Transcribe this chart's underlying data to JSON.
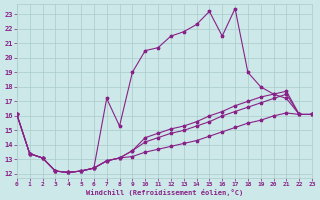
{
  "background_color": "#cce8e8",
  "grid_color": "#aacccc",
  "line_color": "#882288",
  "xlabel": "Windchill (Refroidissement éolien,°C)",
  "ylabel_ticks": [
    12,
    13,
    14,
    15,
    16,
    17,
    18,
    19,
    20,
    21,
    22,
    23
  ],
  "xlabel_ticks": [
    0,
    1,
    2,
    3,
    4,
    5,
    6,
    7,
    8,
    9,
    10,
    11,
    12,
    13,
    14,
    15,
    16,
    17,
    18,
    19,
    20,
    21,
    22,
    23
  ],
  "xlim": [
    0,
    23
  ],
  "ylim": [
    11.7,
    23.7
  ],
  "series": [
    {
      "x": [
        0,
        1,
        2,
        3,
        4,
        5,
        6,
        7,
        8,
        9,
        10,
        11,
        12,
        13,
        14,
        15,
        16,
        17,
        18,
        19,
        20,
        21,
        22,
        23
      ],
      "y": [
        16.1,
        13.4,
        13.1,
        12.2,
        12.1,
        12.2,
        12.4,
        12.9,
        13.1,
        13.2,
        13.5,
        13.7,
        13.9,
        14.1,
        14.3,
        14.6,
        14.9,
        15.2,
        15.5,
        15.7,
        16.0,
        16.2,
        16.1,
        16.1
      ]
    },
    {
      "x": [
        0,
        1,
        2,
        3,
        4,
        5,
        6,
        7,
        8,
        9,
        10,
        11,
        12,
        13,
        14,
        15,
        16,
        17,
        18,
        19,
        20,
        21,
        22,
        23
      ],
      "y": [
        16.1,
        13.4,
        13.1,
        12.2,
        12.1,
        12.2,
        12.4,
        12.9,
        13.1,
        13.6,
        14.2,
        14.5,
        14.8,
        15.0,
        15.3,
        15.6,
        16.0,
        16.3,
        16.6,
        16.9,
        17.2,
        17.5,
        16.1,
        16.1
      ]
    },
    {
      "x": [
        0,
        1,
        2,
        3,
        4,
        5,
        6,
        7,
        8,
        9,
        10,
        11,
        12,
        13,
        14,
        15,
        16,
        17,
        18,
        19,
        20,
        21,
        22,
        23
      ],
      "y": [
        16.1,
        13.4,
        13.1,
        12.2,
        12.1,
        12.2,
        12.4,
        12.9,
        13.1,
        13.6,
        14.5,
        14.8,
        15.1,
        15.3,
        15.6,
        16.0,
        16.3,
        16.7,
        17.0,
        17.3,
        17.5,
        17.7,
        16.1,
        16.1
      ]
    },
    {
      "x": [
        0,
        1,
        2,
        3,
        4,
        5,
        6,
        7,
        8,
        9,
        10,
        11,
        12,
        13,
        14,
        15,
        16,
        17,
        18,
        19,
        20,
        21,
        22,
        23
      ],
      "y": [
        16.1,
        13.4,
        13.1,
        12.2,
        12.1,
        12.2,
        12.4,
        17.2,
        15.3,
        19.0,
        20.5,
        20.7,
        21.5,
        21.8,
        22.3,
        23.2,
        21.5,
        23.4,
        19.0,
        18.0,
        17.5,
        17.2,
        16.1,
        16.1
      ]
    }
  ]
}
